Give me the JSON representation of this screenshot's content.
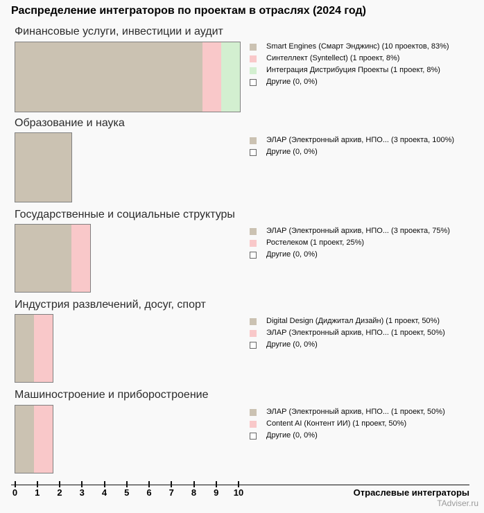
{
  "title": "Распределение интеграторов по проектам в отраслях (2024 год)",
  "watermark": "TAdviser.ru",
  "colors": {
    "tan": "#cbc2b2",
    "pink": "#f9c8c9",
    "green": "#d3efd0",
    "other": "#ffffff",
    "bar_border": "#808080",
    "background": "#f9f9f9"
  },
  "axis": {
    "ticks": [
      "0",
      "1",
      "2",
      "3",
      "4",
      "5",
      "6",
      "7",
      "8",
      "9",
      "10"
    ],
    "range": [
      0,
      10
    ],
    "label": "Отраслевые интеграторы"
  },
  "chart_data": [
    {
      "type": "bar",
      "orientation": "horizontal",
      "title": "Финансовые услуги, инвестиции и аудит",
      "unit": "проекты",
      "segments": [
        {
          "name": "Smart Engines (Смарт Энджинс)",
          "projects": 10,
          "percent": "83%",
          "color": "tan"
        },
        {
          "name": "Синтеллект (Syntellect)",
          "projects": 1,
          "percent": "8%",
          "color": "pink"
        },
        {
          "name": "Интеграция Дистрибуция Проекты",
          "projects": 1,
          "percent": "8%",
          "color": "green"
        }
      ],
      "legend": [
        {
          "text": "Smart Engines (Смарт Энджинс) (10 проектов, 83%)",
          "color": "tan"
        },
        {
          "text": "Синтеллект (Syntellect) (1 проект, 8%)",
          "color": "pink"
        },
        {
          "text": "Интеграция Дистрибуция Проекты (1 проект, 8%)",
          "color": "green"
        },
        {
          "text": "Другие (0, 0%)",
          "color": "other"
        }
      ]
    },
    {
      "type": "bar",
      "orientation": "horizontal",
      "title": "Образование и наука",
      "unit": "проекты",
      "segments": [
        {
          "name": "ЭЛАР (Электронный архив, НПО...",
          "projects": 3,
          "percent": "100%",
          "color": "tan"
        }
      ],
      "legend": [
        {
          "text": "ЭЛАР (Электронный архив, НПО... (3 проекта, 100%)",
          "color": "tan"
        },
        {
          "text": "Другие (0, 0%)",
          "color": "other"
        }
      ]
    },
    {
      "type": "bar",
      "orientation": "horizontal",
      "title": "Государственные и социальные структуры",
      "unit": "проекты",
      "segments": [
        {
          "name": "ЭЛАР (Электронный архив, НПО...",
          "projects": 3,
          "percent": "75%",
          "color": "tan"
        },
        {
          "name": "Ростелеком",
          "projects": 1,
          "percent": "25%",
          "color": "pink"
        }
      ],
      "legend": [
        {
          "text": "ЭЛАР (Электронный архив, НПО... (3 проекта, 75%)",
          "color": "tan"
        },
        {
          "text": "Ростелеком (1 проект, 25%)",
          "color": "pink"
        },
        {
          "text": "Другие (0, 0%)",
          "color": "other"
        }
      ]
    },
    {
      "type": "bar",
      "orientation": "horizontal",
      "title": "Индустрия развлечений, досуг, спорт",
      "unit": "проекты",
      "segments": [
        {
          "name": "Digital Design (Диджитал Дизайн)",
          "projects": 1,
          "percent": "50%",
          "color": "tan"
        },
        {
          "name": "ЭЛАР (Электронный архив, НПО...",
          "projects": 1,
          "percent": "50%",
          "color": "pink"
        }
      ],
      "legend": [
        {
          "text": "Digital Design (Диджитал Дизайн) (1 проект, 50%)",
          "color": "tan"
        },
        {
          "text": "ЭЛАР (Электронный архив, НПО... (1 проект, 50%)",
          "color": "pink"
        },
        {
          "text": "Другие (0, 0%)",
          "color": "other"
        }
      ]
    },
    {
      "type": "bar",
      "orientation": "horizontal",
      "title": "Машиностроение и приборостроение",
      "unit": "проекты",
      "segments": [
        {
          "name": "ЭЛАР (Электронный архив, НПО...",
          "projects": 1,
          "percent": "50%",
          "color": "tan"
        },
        {
          "name": "Content AI (Контент ИИ)",
          "projects": 1,
          "percent": "50%",
          "color": "pink"
        }
      ],
      "legend": [
        {
          "text": "ЭЛАР (Электронный архив, НПО... (1 проект, 50%)",
          "color": "tan"
        },
        {
          "text": "Content AI (Контент ИИ) (1 проект, 50%)",
          "color": "pink"
        },
        {
          "text": "Другие (0, 0%)",
          "color": "other"
        }
      ]
    }
  ]
}
